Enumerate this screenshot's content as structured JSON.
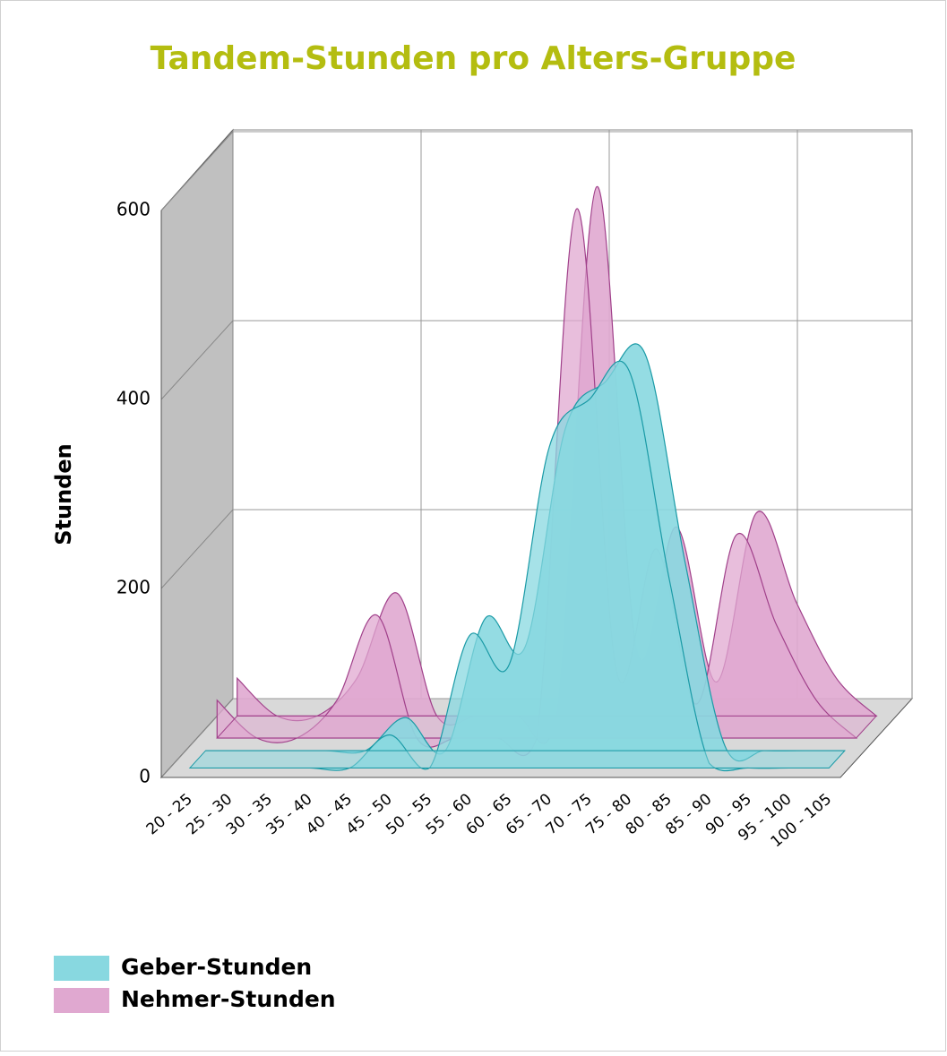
{
  "chart_data": {
    "type": "area3d",
    "title": "Tandem-Stunden pro Alters-Gruppe",
    "y_label": "Stunden",
    "categories": [
      "20 - 25",
      "25 - 30",
      "30 - 35",
      "35 - 40",
      "40 - 45",
      "45 - 50",
      "50 - 55",
      "55 - 60",
      "60 - 65",
      "65 - 70",
      "70 - 75",
      "75 - 80",
      "80 - 85",
      "85 - 90",
      "90 - 95",
      "95 - 100",
      "100 - 105"
    ],
    "series": [
      {
        "name": "Geber-Stunden",
        "color": "#88d8e0",
        "values": [
          0,
          0,
          0,
          0,
          0,
          35,
          0,
          140,
          110,
          340,
          390,
          420,
          200,
          5,
          0,
          0,
          0
        ]
      },
      {
        "name": "Nehmer-Stunden",
        "color": "#e0a8d0",
        "values": [
          40,
          0,
          0,
          40,
          130,
          0,
          0,
          0,
          0,
          560,
          70,
          200,
          36,
          215,
          120,
          40,
          0
        ]
      }
    ],
    "ylim": [
      0,
      600
    ],
    "yticks": [
      0,
      200,
      400,
      600
    ],
    "grid": true
  }
}
